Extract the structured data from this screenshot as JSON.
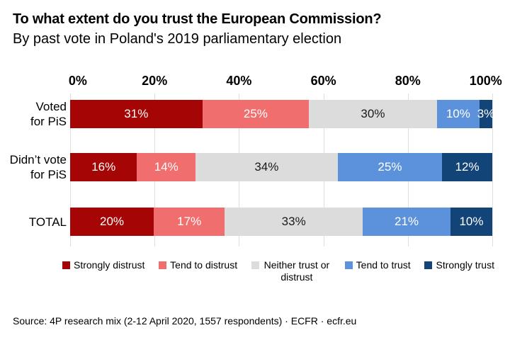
{
  "title": "To what extent do you trust the European Commission?",
  "subtitle": "By past vote in Poland's 2019 parliamentary election",
  "source": "Source: 4P research mix (2-12 April 2020, 1557 respondents)  · ECFR · ecfr.eu",
  "colors": {
    "background": "#ffffff",
    "gridline": "#e0e0e0",
    "text": "#000000"
  },
  "chart_data": {
    "type": "bar",
    "orientation": "horizontal-stacked",
    "title": "To what extent do you trust the European Commission?",
    "subtitle": "By past vote in Poland's 2019 parliamentary election",
    "categories": [
      "Voted for PiS",
      "Did’t vote for PiS",
      "TOTAL"
    ],
    "category_label_lines": [
      [
        "Voted",
        "for PiS"
      ],
      [
        "Didn’t vote",
        "for PiS"
      ],
      [
        "TOTAL"
      ]
    ],
    "series": [
      {
        "name": "Strongly distrust",
        "color": "#a50505",
        "label_color": "#ffffff",
        "values": [
          31,
          16,
          20
        ]
      },
      {
        "name": "Tend to distrust",
        "color": "#f06e6e",
        "label_color": "#ffffff",
        "values": [
          25,
          14,
          17
        ]
      },
      {
        "name": "Neither trust or distrust",
        "color": "#dcdcdc",
        "label_color": "#1a1a1a",
        "values": [
          30,
          34,
          33
        ]
      },
      {
        "name": "Tend to trust",
        "color": "#5b92db",
        "label_color": "#ffffff",
        "values": [
          10,
          25,
          21
        ]
      },
      {
        "name": "Strongly trust",
        "color": "#134478",
        "label_color": "#ffffff",
        "values": [
          3,
          12,
          10
        ]
      }
    ],
    "value_suffix": "%",
    "x_axis": {
      "ticks": [
        "0%",
        "20%",
        "40%",
        "60%",
        "80%",
        "100%"
      ],
      "range": [
        0,
        100
      ],
      "grid": true
    },
    "legend_position": "bottom"
  }
}
